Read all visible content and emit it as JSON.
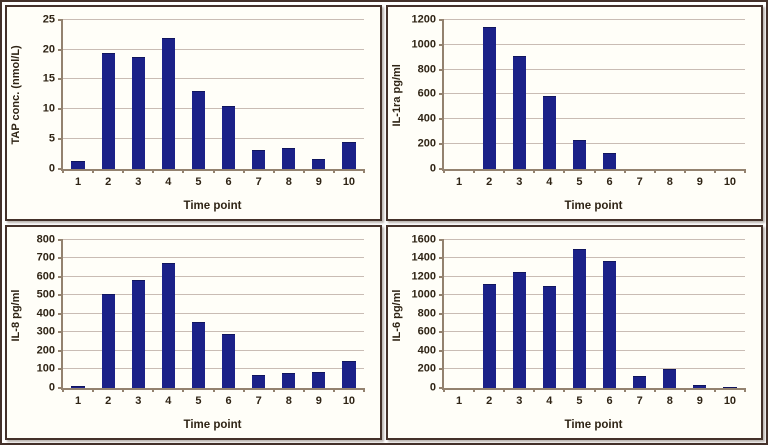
{
  "figure": {
    "description": "Four bar charts of marker concentrations over time points",
    "frame_color": "#44312a",
    "panel_background": "#fffef8"
  },
  "colors": {
    "bar": "#1b2188",
    "gridline": "#c9bcb4",
    "axis": "#93826f",
    "text": "#2f2415"
  },
  "chart_data": [
    {
      "type": "bar",
      "id": "tap",
      "categories": [
        "1",
        "2",
        "3",
        "4",
        "5",
        "6",
        "7",
        "8",
        "9",
        "10"
      ],
      "values": [
        1.2,
        19.5,
        18.8,
        22,
        13,
        10.5,
        3.2,
        3.5,
        1.6,
        4.5
      ],
      "title": "",
      "xlabel": "Time point",
      "ylabel": "TAP conc. (nmol/L)",
      "ylim": [
        0,
        25
      ],
      "ytick_step": 5,
      "grid": true,
      "legend": false
    },
    {
      "type": "bar",
      "id": "il1ra",
      "categories": [
        "1",
        "2",
        "3",
        "4",
        "5",
        "6",
        "7",
        "8",
        "9",
        "10"
      ],
      "values": [
        0,
        1140,
        910,
        590,
        230,
        125,
        0,
        0,
        0,
        0
      ],
      "title": "",
      "xlabel": "Time point",
      "ylabel": "IL-1ra pg/ml",
      "ylim": [
        0,
        1200
      ],
      "ytick_step": 200,
      "grid": true,
      "legend": false
    },
    {
      "type": "bar",
      "id": "il8",
      "categories": [
        "1",
        "2",
        "3",
        "4",
        "5",
        "6",
        "7",
        "8",
        "9",
        "10"
      ],
      "values": [
        10,
        505,
        580,
        675,
        355,
        290,
        70,
        80,
        85,
        145
      ],
      "title": "",
      "xlabel": "Time point",
      "ylabel": "IL-8 pg/ml",
      "ylim": [
        0,
        800
      ],
      "ytick_step": 100,
      "grid": true,
      "legend": false
    },
    {
      "type": "bar",
      "id": "il6",
      "categories": [
        "1",
        "2",
        "3",
        "4",
        "5",
        "6",
        "7",
        "8",
        "9",
        "10"
      ],
      "values": [
        0,
        1120,
        1250,
        1100,
        1500,
        1370,
        125,
        200,
        35,
        15
      ],
      "title": "",
      "xlabel": "Time point",
      "ylabel": "IL-6 pg/ml",
      "ylim": [
        0,
        1600
      ],
      "ytick_step": 200,
      "grid": true,
      "legend": false
    }
  ]
}
